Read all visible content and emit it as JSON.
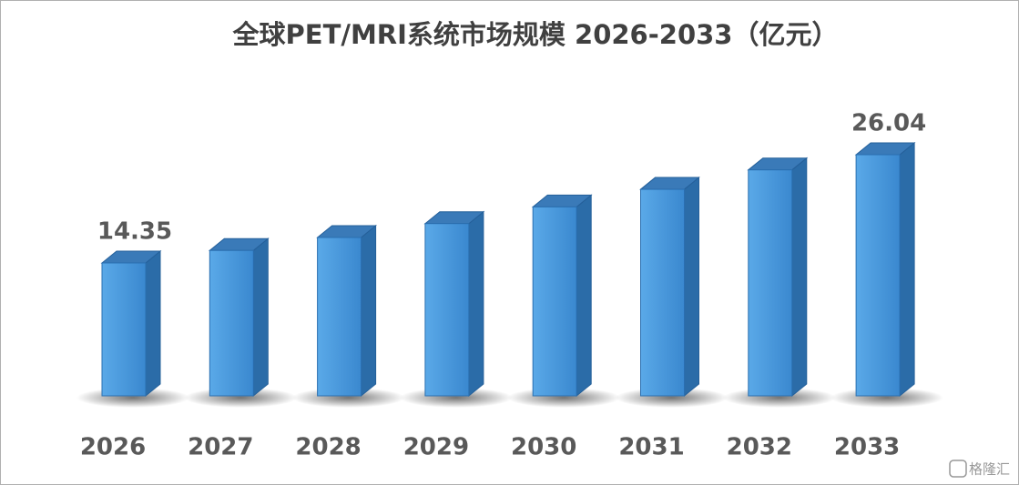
{
  "chart_data": {
    "type": "bar3d",
    "title": "全球PET/MRI系统市场规模 2026-2033（亿元）",
    "categories": [
      "2026",
      "2027",
      "2028",
      "2029",
      "2030",
      "2031",
      "2032",
      "2033"
    ],
    "values": [
      14.35,
      15.7,
      17.1,
      18.6,
      20.4,
      22.3,
      24.4,
      26.04
    ],
    "value_labels": [
      "14.35",
      null,
      null,
      null,
      null,
      null,
      null,
      "26.04"
    ],
    "color": "#3f8fd6",
    "watermark": "格隆汇"
  }
}
